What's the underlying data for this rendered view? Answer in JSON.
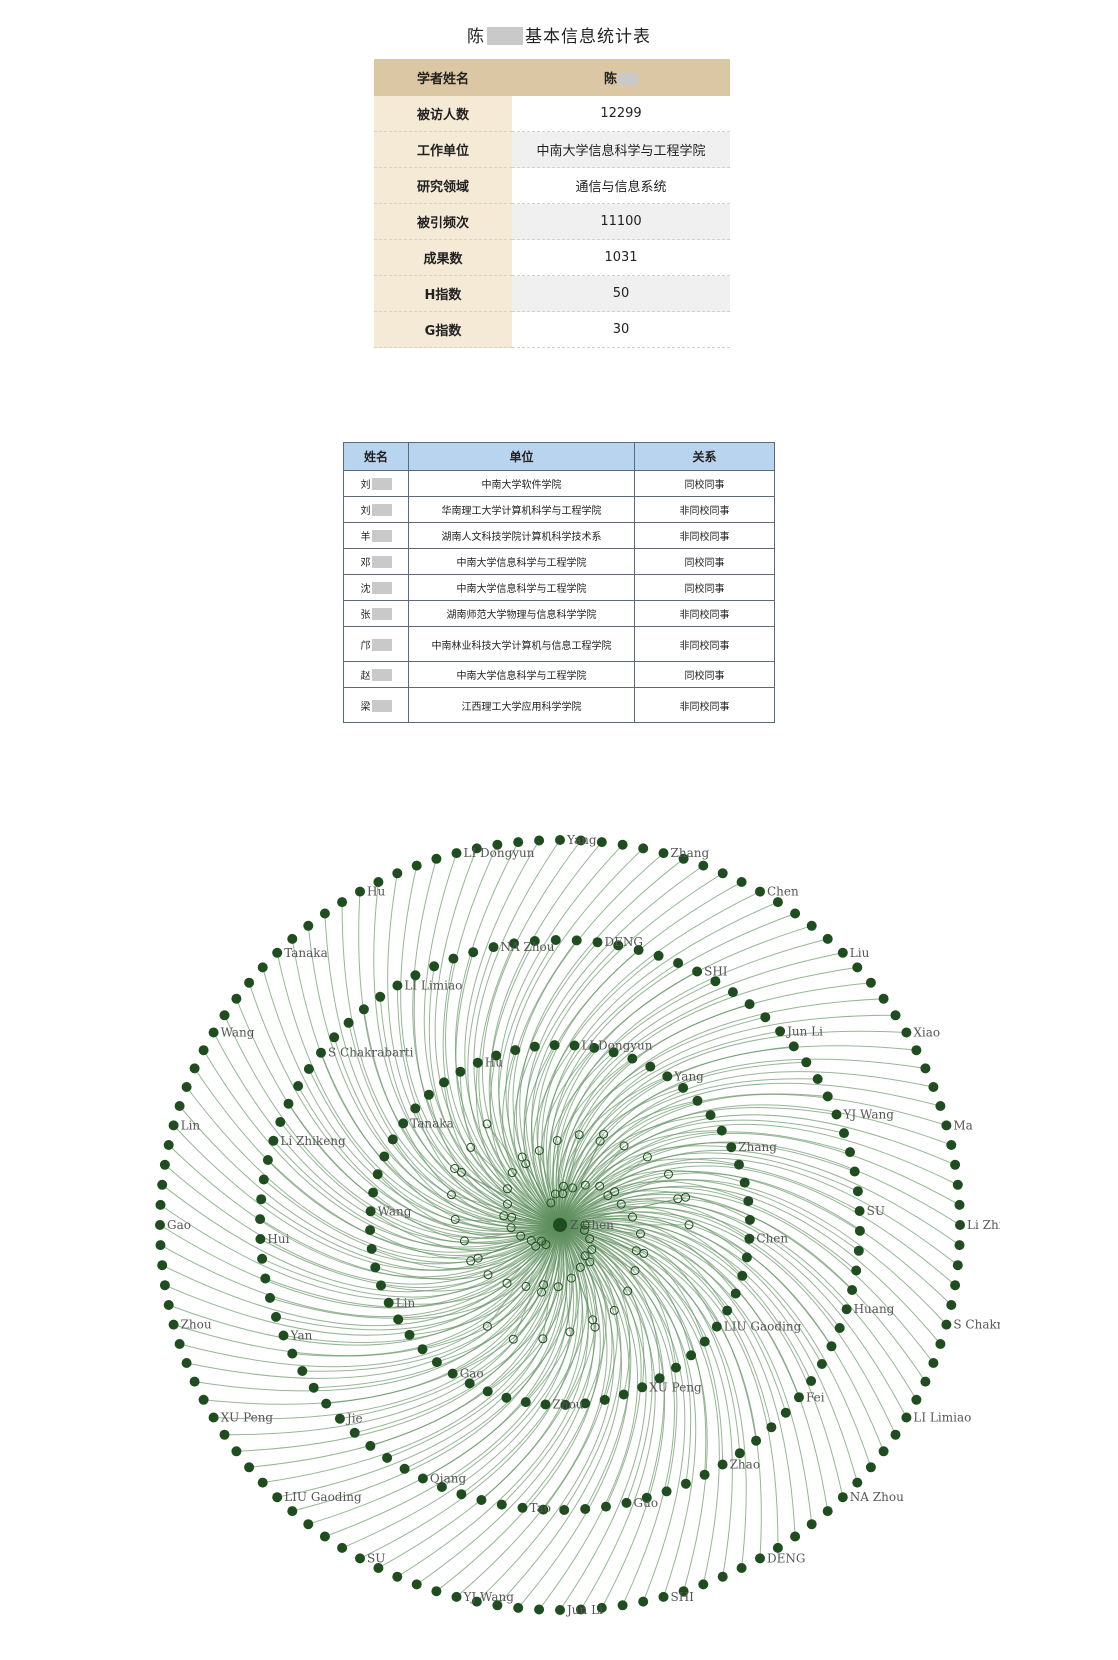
{
  "title": {
    "surname": "陈",
    "suffix": "基本信息统计表"
  },
  "info_table": {
    "header": {
      "label": "学者姓名",
      "value": "陈"
    },
    "rows": [
      {
        "label": "被访人数",
        "value": "12299"
      },
      {
        "label": "工作单位",
        "value": "中南大学信息科学与工程学院"
      },
      {
        "label": "研究领域",
        "value": "通信与信息系统"
      },
      {
        "label": "被引频次",
        "value": "11100"
      },
      {
        "label": "成果数",
        "value": "1031"
      },
      {
        "label": "H指数",
        "value": "50"
      },
      {
        "label": "G指数",
        "value": "30"
      }
    ]
  },
  "coauthor_table": {
    "headers": [
      "姓名",
      "单位",
      "关系"
    ],
    "rows": [
      {
        "name": "刘",
        "unit": "中南大学软件学院",
        "relation": "同校同事"
      },
      {
        "name": "刘",
        "unit": "华南理工大学计算机科学与工程学院",
        "relation": "非同校同事"
      },
      {
        "name": "羊",
        "unit": "湖南人文科技学院计算机科学技术系",
        "relation": "非同校同事"
      },
      {
        "name": "邓",
        "unit": "中南大学信息科学与工程学院",
        "relation": "同校同事"
      },
      {
        "name": "沈",
        "unit": "中南大学信息科学与工程学院",
        "relation": "同校同事"
      },
      {
        "name": "张",
        "unit": "湖南师范大学物理与信息科学学院",
        "relation": "非同校同事"
      },
      {
        "name": "邝",
        "unit": "中南林业科技大学计算机与信息工程学院",
        "relation": "非同校同事"
      },
      {
        "name": "赵",
        "unit": "中南大学信息科学与工程学院",
        "relation": "同校同事"
      },
      {
        "name": "梁",
        "unit": "江西理工大学应用科学学院",
        "relation": "非同校同事"
      }
    ]
  },
  "network": {
    "center_label": "Z Chen",
    "edge_color": "#5e8f5e",
    "node_color": "#1f4d1f",
    "labels": [
      "Li Zhikeng",
      "S Chakrabarti",
      "LI Limiao",
      "NA Zhou",
      "DENG",
      "SHI",
      "Jun Li",
      "YJ Wang",
      "SU",
      "LIU Gaoding",
      "XU Peng",
      "Zhou",
      "Gao",
      "Lin",
      "Wang",
      "Tanaka",
      "Hu",
      "LI Dongyun",
      "Yang",
      "Zhang",
      "Chen",
      "Liu",
      "Xiao",
      "Ma",
      "Huang",
      "Fei",
      "Zhao",
      "Guo",
      "Tao",
      "Qiang",
      "Jie",
      "Yan",
      "Hui"
    ]
  }
}
